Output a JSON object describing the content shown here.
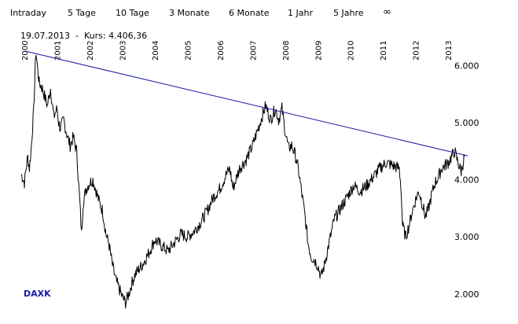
{
  "ranges": [
    "Intraday",
    "5 Tage",
    "10 Tage",
    "3 Monate",
    "6 Monate",
    "1 Jahr",
    "5 Jahre",
    "∞"
  ],
  "quote": {
    "date": "19.07.2013",
    "separator": "-",
    "label": "Kurs:",
    "value": "4.406,36"
  },
  "brand": "DAXK",
  "colors": {
    "series": "#000000",
    "trendline": "#1a1aa6",
    "brand": "#1a1aa6"
  },
  "chart_data": {
    "type": "line",
    "title": "",
    "xlabel": "",
    "ylabel": "",
    "x_ticks": [
      "2000",
      "2001",
      "2002",
      "2003",
      "2004",
      "2005",
      "2006",
      "2007",
      "2008",
      "2009",
      "2010",
      "2011",
      "2012",
      "2013"
    ],
    "y_ticks": [
      "2.000",
      "3.000",
      "4.000",
      "5.000",
      "6.000"
    ],
    "xlim": [
      1999.9,
      2013.6
    ],
    "ylim": [
      1750,
      6350
    ],
    "grid": false,
    "series": [
      {
        "name": "DAXK",
        "x": [
          1999.9,
          2000.0,
          2000.05,
          2000.1,
          2000.15,
          2000.2,
          2000.28,
          2000.35,
          2000.45,
          2000.55,
          2000.6,
          2000.7,
          2000.8,
          2000.9,
          2001.0,
          2001.05,
          2001.1,
          2001.2,
          2001.3,
          2001.4,
          2001.5,
          2001.6,
          2001.7,
          2001.75,
          2001.8,
          2001.9,
          2002.0,
          2002.1,
          2002.2,
          2002.3,
          2002.4,
          2002.5,
          2002.6,
          2002.7,
          2002.8,
          2002.9,
          2003.0,
          2003.1,
          2003.2,
          2003.3,
          2003.4,
          2003.6,
          2003.8,
          2004.0,
          2004.2,
          2004.4,
          2004.6,
          2004.8,
          2005.0,
          2005.2,
          2005.4,
          2005.6,
          2005.8,
          2006.0,
          2006.2,
          2006.3,
          2006.4,
          2006.6,
          2006.8,
          2007.0,
          2007.2,
          2007.4,
          2007.55,
          2007.7,
          2007.8,
          2007.9,
          2008.0,
          2008.1,
          2008.2,
          2008.3,
          2008.4,
          2008.5,
          2008.6,
          2008.7,
          2008.8,
          2008.9,
          2009.0,
          2009.1,
          2009.2,
          2009.35,
          2009.5,
          2009.7,
          2009.9,
          2010.1,
          2010.3,
          2010.5,
          2010.7,
          2010.9,
          2011.1,
          2011.3,
          2011.5,
          2011.55,
          2011.6,
          2011.7,
          2011.8,
          2011.9,
          2012.0,
          2012.1,
          2012.2,
          2012.3,
          2012.4,
          2012.5,
          2012.6,
          2012.7,
          2012.8,
          2012.9,
          2013.0,
          2013.1,
          2013.2,
          2013.3,
          2013.4,
          2013.5
        ],
        "y": [
          4100,
          3950,
          4200,
          4400,
          4200,
          4500,
          5200,
          6250,
          5700,
          5600,
          5500,
          5300,
          5600,
          5100,
          5250,
          5000,
          4900,
          5050,
          4800,
          4600,
          4750,
          4500,
          3600,
          3050,
          3600,
          3850,
          3950,
          4000,
          3800,
          3600,
          3450,
          3050,
          2850,
          2500,
          2250,
          2100,
          1950,
          1850,
          2000,
          2200,
          2350,
          2500,
          2700,
          2950,
          2850,
          2750,
          2900,
          3050,
          3000,
          3100,
          3250,
          3450,
          3700,
          3850,
          4100,
          4200,
          3850,
          4200,
          4350,
          4600,
          4950,
          5300,
          5050,
          5250,
          5050,
          5250,
          4850,
          4550,
          4600,
          4450,
          4200,
          3800,
          3400,
          2900,
          2650,
          2600,
          2500,
          2300,
          2500,
          2900,
          3300,
          3500,
          3700,
          3900,
          3800,
          3900,
          4050,
          4200,
          4300,
          4250,
          4200,
          3900,
          3200,
          3000,
          3200,
          3450,
          3650,
          3800,
          3600,
          3350,
          3500,
          3750,
          3950,
          4050,
          4200,
          4250,
          4300,
          4400,
          4500,
          4300,
          4150,
          4406
        ]
      }
    ],
    "trendline": {
      "x": [
        2000.05,
        2013.6
      ],
      "y": [
        6250,
        4420
      ]
    }
  }
}
